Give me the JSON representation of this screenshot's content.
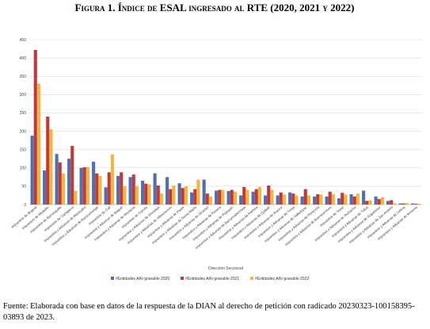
{
  "chart_data": {
    "type": "bar",
    "title": "Figura 1. Índice de ESAL ingresado al RTE (2020, 2021 y 2022)",
    "x_label": "Dirección Seccional",
    "categories": [
      "Impuestos de Bogotá",
      "Impuestos de Medellín",
      "Impuestos de Barranquilla",
      "Impuestos de Cartagena",
      "Impuestos y Aduanas de Manizales",
      "Impuestos y Aduanas de Bucaramanga",
      "Impuestos de Cali",
      "Impuestos y Aduanas de Ibagué",
      "Impuestos y Aduanas de Montería",
      "Impuestos de Cúcuta",
      "Impuestos y Aduanas de Sincelejo",
      "Impuestos y Aduanas de Villavicencio",
      "Impuestos y Aduanas de Pasto",
      "Impuestos y Aduanas de Santa Marta",
      "Impuestos y Aduanas de Girardot",
      "Impuestos y Aduanas de Pereira",
      "Impuestos y Aduanas de Popayán",
      "Impuestos y Aduanas de Barrancabermeja",
      "Impuestos y Aduanas de Palmira",
      "Impuestos y Aduanas de Quibdó",
      "Impuestos y Aduanas de Arauca",
      "Impuestos y Aduanas de Tunja",
      "Impuestos y Aduanas de Valledupar",
      "Impuestos y Aduanas de Florencia",
      "Impuestos y Aduanas de Buenaventura",
      "Impuestos de Yopal",
      "Impuestos y Aduanas de Riohacha",
      "Impuestos y Aduanas de Tuluá",
      "Impuestos y Aduanas de Sogamoso",
      "Impuestos y Aduanas de San Andrés",
      "Impuestos y Aduanas de Leticia",
      "Impuestos y Aduanas de Armenia"
    ],
    "series": [
      {
        "name": "#Entidades Año gravable 2020",
        "color": "#4f6fb0",
        "values": [
          188,
          93,
          138,
          125,
          100,
          117,
          47,
          78,
          75,
          65,
          85,
          75,
          58,
          33,
          68,
          38,
          37,
          25,
          35,
          25,
          25,
          33,
          22,
          22,
          22,
          17,
          28,
          38,
          22,
          10,
          3,
          3
        ]
      },
      {
        "name": "#Entidades Año gravable 2021",
        "color": "#c0393b",
        "values": [
          422,
          240,
          115,
          160,
          102,
          85,
          88,
          88,
          82,
          57,
          52,
          42,
          45,
          42,
          30,
          40,
          40,
          48,
          42,
          52,
          33,
          30,
          42,
          28,
          35,
          32,
          22,
          10,
          15,
          12,
          3,
          2
        ]
      },
      {
        "name": "#Entidades Año gravable 2022",
        "color": "#f2b640",
        "values": [
          330,
          206,
          85,
          37,
          102,
          78,
          137,
          50,
          50,
          55,
          30,
          52,
          50,
          68,
          22,
          40,
          35,
          40,
          48,
          40,
          27,
          25,
          25,
          27,
          28,
          27,
          30,
          12,
          20,
          3,
          4,
          2
        ]
      }
    ],
    "ylim": [
      0,
      450
    ],
    "yticks": [
      0,
      50,
      100,
      150,
      200,
      250,
      300,
      350,
      400,
      450
    ],
    "grid": true
  },
  "note": "Fuente: Elaborada con base en datos de la respuesta de la DIAN al derecho de petición con radicado 20230323-100158395-03893 de 2023."
}
